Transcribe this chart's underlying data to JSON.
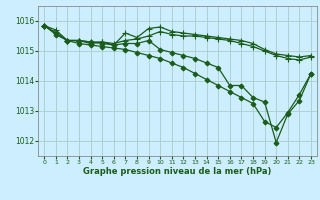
{
  "title": "Graphe pression niveau de la mer (hPa)",
  "background_color": "#cceeff",
  "grid_color": "#aacccc",
  "line_color": "#1a5c1a",
  "xlim": [
    -0.5,
    23.5
  ],
  "ylim": [
    1011.5,
    1016.5
  ],
  "yticks": [
    1012,
    1013,
    1014,
    1015,
    1016
  ],
  "xticks": [
    0,
    1,
    2,
    3,
    4,
    5,
    6,
    7,
    8,
    9,
    10,
    11,
    12,
    13,
    14,
    15,
    16,
    17,
    18,
    19,
    20,
    21,
    22,
    23
  ],
  "series": [
    {
      "y": [
        1015.85,
        1015.7,
        1015.35,
        1015.35,
        1015.25,
        1015.3,
        1015.2,
        1015.6,
        1015.45,
        1015.75,
        1015.8,
        1015.65,
        1015.6,
        1015.55,
        1015.5,
        1015.45,
        1015.4,
        1015.35,
        1015.25,
        1015.05,
        1014.9,
        1014.85,
        1014.8,
        1014.85
      ],
      "marker": "+",
      "markersize": 4,
      "lw": 0.9
    },
    {
      "y": [
        1015.85,
        1015.6,
        1015.35,
        1015.35,
        1015.3,
        1015.3,
        1015.25,
        1015.35,
        1015.4,
        1015.5,
        1015.65,
        1015.55,
        1015.5,
        1015.5,
        1015.45,
        1015.4,
        1015.35,
        1015.25,
        1015.15,
        1015.0,
        1014.85,
        1014.75,
        1014.7,
        1014.8
      ],
      "marker": "+",
      "markersize": 4,
      "lw": 0.9
    },
    {
      "y": [
        1015.85,
        1015.6,
        1015.35,
        1015.35,
        1015.3,
        1015.25,
        1015.2,
        1015.25,
        1015.25,
        1015.35,
        1015.05,
        1014.95,
        1014.85,
        1014.75,
        1014.6,
        1014.45,
        1013.85,
        1013.85,
        1013.45,
        1013.3,
        1011.95,
        1012.9,
        1013.35,
        1014.25
      ],
      "marker": "D",
      "markersize": 2.5,
      "lw": 0.9
    },
    {
      "y": [
        1015.85,
        1015.55,
        1015.35,
        1015.25,
        1015.2,
        1015.15,
        1015.1,
        1015.05,
        1014.95,
        1014.85,
        1014.75,
        1014.6,
        1014.45,
        1014.25,
        1014.05,
        1013.85,
        1013.65,
        1013.45,
        1013.25,
        1012.65,
        1012.45,
        1012.95,
        1013.55,
        1014.25
      ],
      "marker": "D",
      "markersize": 2.5,
      "lw": 0.9
    }
  ]
}
